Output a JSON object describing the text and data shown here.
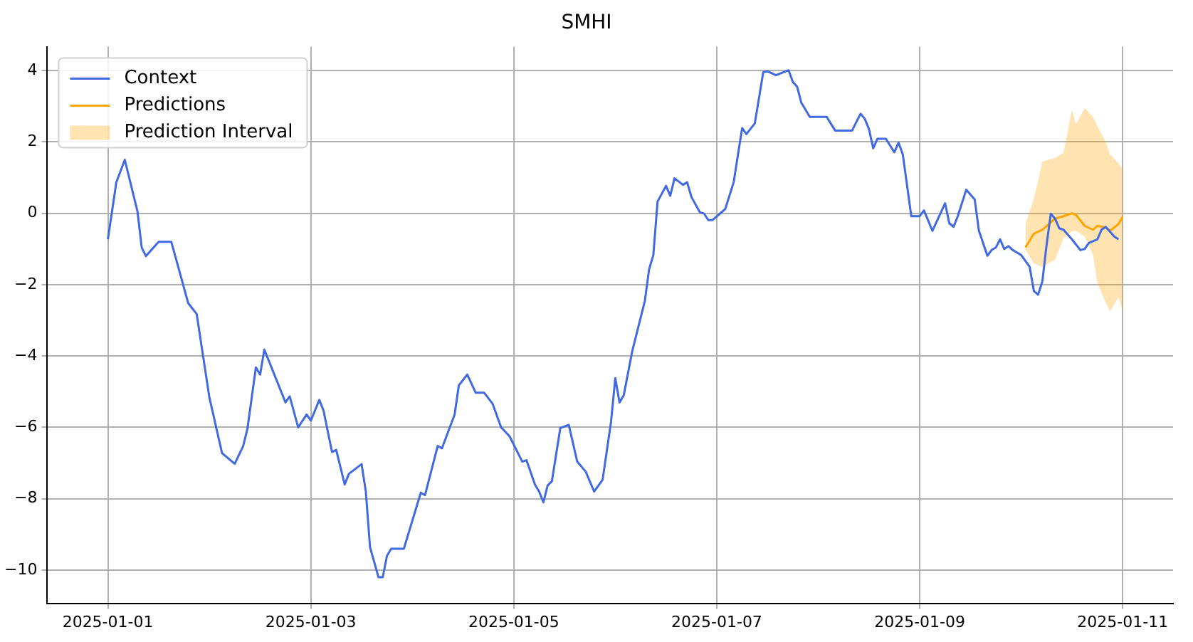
{
  "chart_data": {
    "type": "line",
    "title": "SMHI",
    "xlim": [
      "2024-12-31T09:40",
      "2025-01-11T11:55"
    ],
    "xticks": [
      "2025-01-01",
      "2025-01-03",
      "2025-01-05",
      "2025-01-07",
      "2025-01-09",
      "2025-01-11"
    ],
    "ylim": [
      -10.93,
      4.67
    ],
    "yticks": [
      -10,
      -8,
      -6,
      -4,
      -2,
      0,
      2,
      4
    ],
    "grid": true,
    "legend": "top left",
    "annotations": [
      "Prediction Interval"
    ],
    "series": [
      {
        "name": "Context",
        "color": "#4169e1",
        "x": [
          "2025-01-01T00:00",
          "2025-01-01T02:00",
          "2025-01-01T04:00",
          "2025-01-01T07:00",
          "2025-01-01T08:00",
          "2025-01-01T09:00",
          "2025-01-01T12:00",
          "2025-01-01T15:00",
          "2025-01-01T19:00",
          "2025-01-01T21:00",
          "2025-01-02T00:00",
          "2025-01-02T03:00",
          "2025-01-02T06:00",
          "2025-01-02T08:00",
          "2025-01-02T09:00",
          "2025-01-02T11:00",
          "2025-01-02T12:00",
          "2025-01-02T13:00",
          "2025-01-02T18:00",
          "2025-01-02T19:00",
          "2025-01-02T21:00",
          "2025-01-02T23:00",
          "2025-01-03T00:00",
          "2025-01-03T02:00",
          "2025-01-03T03:00",
          "2025-01-03T05:00",
          "2025-01-03T06:00",
          "2025-01-03T08:00",
          "2025-01-03T09:00",
          "2025-01-03T12:00",
          "2025-01-03T13:00",
          "2025-01-03T14:00",
          "2025-01-03T16:00",
          "2025-01-03T17:00",
          "2025-01-03T18:00",
          "2025-01-03T19:00",
          "2025-01-03T22:00",
          "2025-01-04T02:00",
          "2025-01-04T03:00",
          "2025-01-04T06:00",
          "2025-01-04T07:00",
          "2025-01-04T10:00",
          "2025-01-04T11:00",
          "2025-01-04T13:00",
          "2025-01-04T15:00",
          "2025-01-04T17:00",
          "2025-01-04T19:00",
          "2025-01-04T21:00",
          "2025-01-04T23:00",
          "2025-01-05T02:00",
          "2025-01-05T03:00",
          "2025-01-05T05:00",
          "2025-01-05T06:00",
          "2025-01-05T07:00",
          "2025-01-05T08:00",
          "2025-01-05T09:00",
          "2025-01-05T11:00",
          "2025-01-05T13:00",
          "2025-01-05T15:00",
          "2025-01-05T17:00",
          "2025-01-05T19:00",
          "2025-01-05T21:00",
          "2025-01-05T23:00",
          "2025-01-06T00:00",
          "2025-01-06T01:00",
          "2025-01-06T02:00",
          "2025-01-06T04:00",
          "2025-01-06T07:00",
          "2025-01-06T08:00",
          "2025-01-06T09:00",
          "2025-01-06T10:00",
          "2025-01-06T12:00",
          "2025-01-06T13:00",
          "2025-01-06T14:00",
          "2025-01-06T16:00",
          "2025-01-06T17:00",
          "2025-01-06T18:00",
          "2025-01-06T20:00",
          "2025-01-06T21:00",
          "2025-01-06T22:00",
          "2025-01-06T23:00",
          "2025-01-07T02:00",
          "2025-01-07T04:00",
          "2025-01-07T06:00",
          "2025-01-07T07:00",
          "2025-01-07T09:00",
          "2025-01-07T11:00",
          "2025-01-07T12:00",
          "2025-01-07T14:00",
          "2025-01-07T17:00",
          "2025-01-07T18:00",
          "2025-01-07T19:00",
          "2025-01-07T20:00",
          "2025-01-07T22:00",
          "2025-01-08T02:00",
          "2025-01-08T04:00",
          "2025-01-08T08:00",
          "2025-01-08T10:00",
          "2025-01-08T11:00",
          "2025-01-08T12:00",
          "2025-01-08T13:00",
          "2025-01-08T14:00",
          "2025-01-08T16:00",
          "2025-01-08T18:00",
          "2025-01-08T19:00",
          "2025-01-08T20:00",
          "2025-01-08T22:00",
          "2025-01-09T00:00",
          "2025-01-09T01:00",
          "2025-01-09T03:00",
          "2025-01-09T06:00",
          "2025-01-09T07:00",
          "2025-01-09T08:00",
          "2025-01-09T09:00",
          "2025-01-09T11:00",
          "2025-01-09T13:00",
          "2025-01-09T14:00",
          "2025-01-09T16:00",
          "2025-01-09T17:00",
          "2025-01-09T18:00",
          "2025-01-09T19:00",
          "2025-01-09T20:00",
          "2025-01-09T21:00",
          "2025-01-09T22:00",
          "2025-01-10T00:00",
          "2025-01-10T02:00",
          "2025-01-10T03:00",
          "2025-01-10T04:00",
          "2025-01-10T05:00",
          "2025-01-10T06:00",
          "2025-01-10T07:00",
          "2025-01-10T08:00",
          "2025-01-10T09:00",
          "2025-01-10T10:00",
          "2025-01-10T12:00",
          "2025-01-10T14:00",
          "2025-01-10T15:00",
          "2025-01-10T16:00",
          "2025-01-10T18:00",
          "2025-01-10T19:00",
          "2025-01-10T20:00",
          "2025-01-10T22:00",
          "2025-01-10T23:00"
        ],
        "values": [
          -0.73,
          0.87,
          1.5,
          0.05,
          -0.96,
          -1.2,
          -0.8,
          -0.8,
          -2.52,
          -2.82,
          -5.16,
          -6.72,
          -7.02,
          -6.52,
          -6.04,
          -4.32,
          -4.52,
          -3.82,
          -5.3,
          -5.13,
          -6.0,
          -5.64,
          -5.81,
          -5.23,
          -5.53,
          -6.69,
          -6.63,
          -7.6,
          -7.3,
          -7.03,
          -7.8,
          -9.36,
          -10.2,
          -10.2,
          -9.6,
          -9.4,
          -9.4,
          -7.83,
          -7.9,
          -6.52,
          -6.59,
          -5.64,
          -4.82,
          -4.52,
          -5.03,
          -5.03,
          -5.34,
          -6.0,
          -6.25,
          -6.96,
          -6.92,
          -7.6,
          -7.8,
          -8.1,
          -7.63,
          -7.51,
          -6.02,
          -5.93,
          -6.96,
          -7.24,
          -7.8,
          -7.47,
          -5.84,
          -4.62,
          -5.3,
          -5.1,
          -3.87,
          -2.45,
          -1.57,
          -1.17,
          0.33,
          0.77,
          0.49,
          0.98,
          0.8,
          0.87,
          0.46,
          0.03,
          -0.01,
          -0.19,
          -0.19,
          0.12,
          0.87,
          2.39,
          2.22,
          2.52,
          3.96,
          3.98,
          3.87,
          4.01,
          3.68,
          3.55,
          3.1,
          2.7,
          2.7,
          2.32,
          2.32,
          2.79,
          2.65,
          2.36,
          1.82,
          2.09,
          2.09,
          1.71,
          1.98,
          1.65,
          -0.08,
          -0.08,
          0.08,
          -0.49,
          0.28,
          -0.28,
          -0.38,
          -0.08,
          0.66,
          0.39,
          -0.49,
          -1.19,
          -1.03,
          -0.96,
          -0.73,
          -1.0,
          -0.92,
          -1.03,
          -1.17,
          -1.5,
          -2.18,
          -2.28,
          -1.91,
          -0.89,
          -0.01,
          -0.15,
          -0.42,
          -0.46,
          -0.73,
          -1.03,
          -1.0,
          -0.83,
          -0.73,
          -0.46,
          -0.38,
          -0.65,
          -0.73
        ]
      },
      {
        "name": "Predictions",
        "color": "#ffa500",
        "x": [
          "2025-01-10T01:00",
          "2025-01-10T03:00",
          "2025-01-10T05:00",
          "2025-01-10T08:00",
          "2025-01-10T10:00",
          "2025-01-10T12:00",
          "2025-01-10T13:00",
          "2025-01-10T15:00",
          "2025-01-10T17:00",
          "2025-01-10T18:00",
          "2025-01-10T20:00",
          "2025-01-10T21:00",
          "2025-01-10T23:00",
          "2025-01-11T00:00"
        ],
        "values": [
          -0.96,
          -0.57,
          -0.46,
          -0.15,
          -0.08,
          0.0,
          -0.05,
          -0.35,
          -0.46,
          -0.35,
          -0.4,
          -0.49,
          -0.3,
          -0.1
        ],
        "lower": [
          -1.03,
          -1.4,
          -1.5,
          -1.3,
          -0.7,
          -0.5,
          -0.5,
          -0.65,
          -1.17,
          -1.95,
          -2.5,
          -2.75,
          -2.35,
          -2.75
        ],
        "upper": [
          -0.3,
          0.4,
          1.45,
          1.55,
          1.7,
          2.9,
          2.5,
          2.95,
          2.7,
          2.45,
          2.0,
          1.65,
          1.4,
          1.25
        ]
      }
    ]
  }
}
